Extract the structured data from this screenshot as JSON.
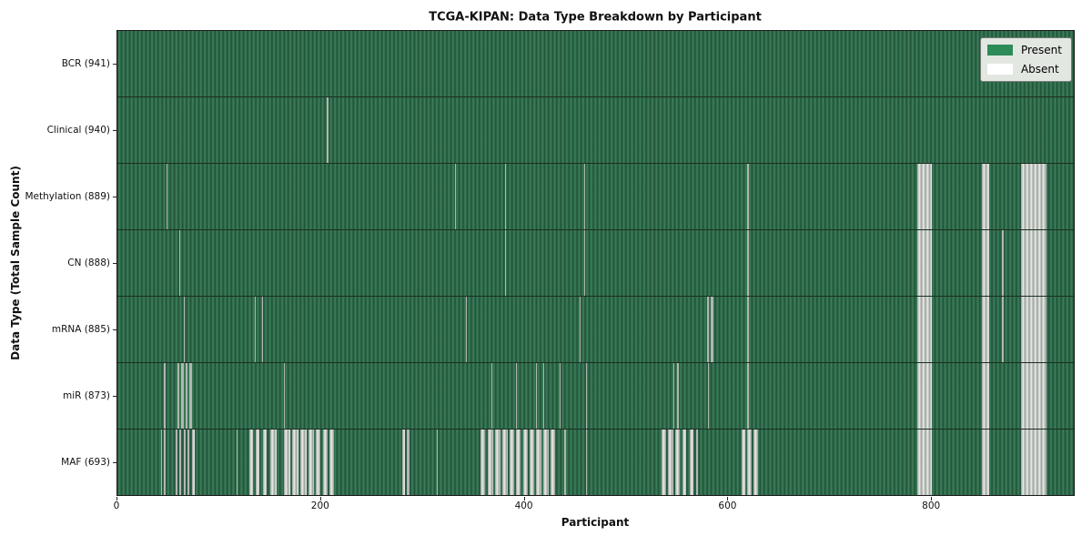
{
  "chart_data": {
    "type": "heatmap",
    "title": "TCGA-KIPAN: Data Type Breakdown by Participant",
    "xlabel": "Participant",
    "ylabel": "Data Type (Total Sample Count)",
    "x_ticks": [
      0,
      200,
      400,
      600,
      800
    ],
    "n_participants": 941,
    "present_color": "#2e8b57",
    "absent_color": "#ffffff",
    "legend": {
      "present": "Present",
      "absent": "Absent",
      "position": "upper right"
    },
    "rows": [
      {
        "label": "BCR (941)",
        "data_type": "BCR",
        "count": 941,
        "absent_ranges": []
      },
      {
        "label": "Clinical (940)",
        "data_type": "Clinical",
        "count": 940,
        "absent_ranges": [
          [
            206,
            208
          ]
        ]
      },
      {
        "label": "Methylation (889)",
        "data_type": "Methylation",
        "count": 889,
        "absent_ranges": [
          [
            48,
            49
          ],
          [
            332,
            333
          ],
          [
            381,
            382
          ],
          [
            459,
            460
          ],
          [
            620,
            621
          ],
          [
            787,
            801
          ],
          [
            851,
            858
          ],
          [
            889,
            914
          ]
        ]
      },
      {
        "label": "CN (888)",
        "data_type": "CN",
        "count": 888,
        "absent_ranges": [
          [
            61,
            62
          ],
          [
            381,
            382
          ],
          [
            459,
            460
          ],
          [
            620,
            621
          ],
          [
            787,
            801
          ],
          [
            851,
            858
          ],
          [
            870,
            872
          ],
          [
            889,
            914
          ]
        ]
      },
      {
        "label": "mRNA (885)",
        "data_type": "mRNA",
        "count": 885,
        "absent_ranges": [
          [
            65,
            66
          ],
          [
            135,
            136
          ],
          [
            142,
            143
          ],
          [
            343,
            344
          ],
          [
            455,
            456
          ],
          [
            580,
            582
          ],
          [
            584,
            586
          ],
          [
            620,
            621
          ],
          [
            787,
            801
          ],
          [
            851,
            858
          ],
          [
            870,
            872
          ],
          [
            889,
            914
          ]
        ]
      },
      {
        "label": "miR (873)",
        "data_type": "miR",
        "count": 873,
        "absent_ranges": [
          [
            46,
            47
          ],
          [
            59,
            61
          ],
          [
            63,
            65
          ],
          [
            67,
            69
          ],
          [
            71,
            73
          ],
          [
            164,
            165
          ],
          [
            368,
            369
          ],
          [
            392,
            393
          ],
          [
            412,
            413
          ],
          [
            419,
            420
          ],
          [
            435,
            436
          ],
          [
            461,
            462
          ],
          [
            547,
            548
          ],
          [
            551,
            552
          ],
          [
            581,
            582
          ],
          [
            620,
            621
          ],
          [
            787,
            801
          ],
          [
            851,
            858
          ],
          [
            889,
            914
          ]
        ]
      },
      {
        "label": "MAF (693)",
        "data_type": "MAF",
        "count": 693,
        "absent_ranges": [
          [
            43,
            44
          ],
          [
            46,
            47
          ],
          [
            57,
            59
          ],
          [
            61,
            63
          ],
          [
            65,
            67
          ],
          [
            69,
            71
          ],
          [
            73,
            76
          ],
          [
            117,
            118
          ],
          [
            130,
            133
          ],
          [
            136,
            140
          ],
          [
            143,
            147
          ],
          [
            150,
            157
          ],
          [
            164,
            170
          ],
          [
            172,
            178
          ],
          [
            180,
            186
          ],
          [
            188,
            193
          ],
          [
            195,
            200
          ],
          [
            202,
            207
          ],
          [
            209,
            213
          ],
          [
            280,
            283
          ],
          [
            285,
            287
          ],
          [
            314,
            315
          ],
          [
            357,
            362
          ],
          [
            364,
            370
          ],
          [
            372,
            377
          ],
          [
            379,
            384
          ],
          [
            386,
            390
          ],
          [
            392,
            397
          ],
          [
            399,
            404
          ],
          [
            406,
            410
          ],
          [
            412,
            417
          ],
          [
            419,
            424
          ],
          [
            426,
            431
          ],
          [
            440,
            441
          ],
          [
            461,
            462
          ],
          [
            535,
            540
          ],
          [
            542,
            547
          ],
          [
            549,
            553
          ],
          [
            556,
            560
          ],
          [
            563,
            567
          ],
          [
            569,
            571
          ],
          [
            614,
            618
          ],
          [
            620,
            624
          ],
          [
            626,
            630
          ],
          [
            787,
            801
          ],
          [
            851,
            858
          ],
          [
            889,
            914
          ]
        ]
      }
    ]
  }
}
